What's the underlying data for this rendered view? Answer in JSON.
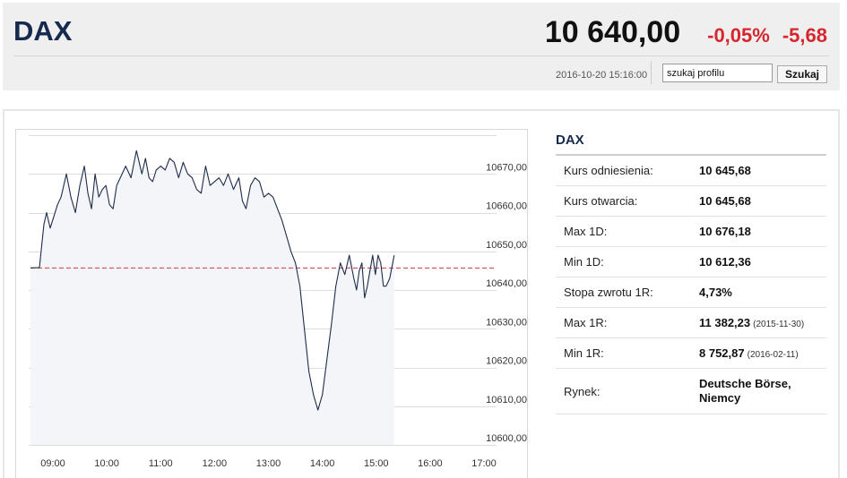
{
  "header": {
    "title": "DAX",
    "price": "10 640,00",
    "change_pct": "-0,05%",
    "change_abs": "-5,68",
    "timestamp": "2016-10-20 15:16:00",
    "search_value": "szukaj profilu",
    "search_button": "Szukaj"
  },
  "colors": {
    "title": "#152a4d",
    "negative": "#d6262e",
    "line": "#1e2c4a",
    "fill": "#f3f5f9",
    "reference_line": "#d9363e"
  },
  "info": {
    "title": "DAX",
    "rows": [
      {
        "label": "Kurs odniesienia:",
        "value": "10 645,68",
        "note": ""
      },
      {
        "label": "Kurs otwarcia:",
        "value": "10 645,68",
        "note": ""
      },
      {
        "label": "Max 1D:",
        "value": "10 676,18",
        "note": ""
      },
      {
        "label": "Min 1D:",
        "value": "10 612,36",
        "note": ""
      },
      {
        "label": "Stopa zwrotu 1R:",
        "value": "4,73%",
        "note": ""
      },
      {
        "label": "Max 1R:",
        "value": "11 382,23",
        "note": "(2015-11-30)"
      },
      {
        "label": "Min 1R:",
        "value": "8 752,87",
        "note": "(2016-02-11)"
      },
      {
        "label": "Rynek:",
        "value": "Deutsche Börse, Niemcy",
        "note": ""
      }
    ]
  },
  "chart_data": {
    "type": "line",
    "title": "",
    "xlabel": "",
    "ylabel": "",
    "x_ticks": [
      "09:00",
      "10:00",
      "11:00",
      "12:00",
      "13:00",
      "14:00",
      "15:00",
      "16:00",
      "17:00"
    ],
    "y_ticks": [
      "10670,00",
      "10660,00",
      "10650,00",
      "10640,00",
      "10630,00",
      "10620,00",
      "10610,00",
      "10600,00"
    ],
    "ylim": [
      10600,
      10680
    ],
    "x_range_minutes": [
      0,
      480
    ],
    "reference_value": 10645.68,
    "grid": true,
    "fill_area": true,
    "series": [
      {
        "x": [
          0,
          10,
          15,
          18,
          22,
          26,
          30,
          34,
          40,
          45,
          50,
          55,
          60,
          64,
          68,
          72,
          76,
          80,
          84,
          88,
          92,
          96,
          100,
          106,
          112,
          118,
          124,
          128,
          132,
          136,
          140,
          145,
          150,
          155,
          160,
          165,
          170,
          175,
          180,
          185,
          190,
          195,
          200,
          205,
          210,
          215,
          220,
          226,
          232,
          236,
          240,
          245,
          250,
          255,
          260,
          265,
          270,
          275,
          280,
          285,
          290,
          295,
          300,
          305,
          310,
          315,
          320,
          325,
          330,
          335,
          340,
          345,
          350,
          355,
          360,
          363,
          366,
          369,
          372,
          375,
          378,
          381,
          384,
          387,
          390,
          393,
          396,
          400,
          405
        ],
        "values": [
          10645.7,
          10645.8,
          10657,
          10660,
          10656,
          10659,
          10662,
          10664,
          10670,
          10664,
          10660,
          10667,
          10672,
          10665,
          10661,
          10670,
          10664,
          10666,
          10667,
          10662,
          10661,
          10667,
          10669,
          10672,
          10669,
          10676,
          10670,
          10674,
          10669,
          10668,
          10671,
          10672,
          10671,
          10674,
          10673,
          10669,
          10673,
          10670,
          10669,
          10666,
          10665,
          10672,
          10667,
          10668,
          10669,
          10667,
          10670,
          10666,
          10669,
          10663,
          10661,
          10667,
          10669,
          10668,
          10664,
          10665,
          10664,
          10661,
          10658,
          10654,
          10650,
          10647,
          10641,
          10630,
          10619,
          10613,
          10609,
          10613,
          10622,
          10631,
          10641,
          10647,
          10644,
          10649,
          10643,
          10640,
          10645,
          10647,
          10638,
          10641,
          10645,
          10649,
          10644,
          10649,
          10647,
          10641,
          10641,
          10643,
          10649
        ]
      }
    ]
  }
}
